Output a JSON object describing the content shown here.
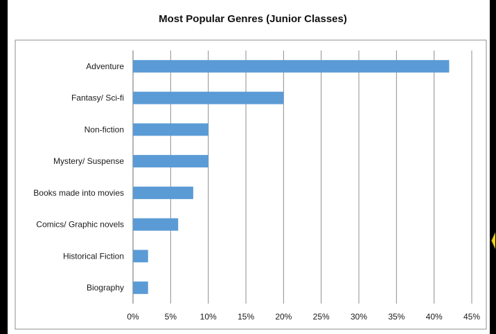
{
  "chart_data": {
    "type": "bar",
    "orientation": "horizontal",
    "title": "Most Popular Genres (Junior Classes)",
    "categories": [
      "Adventure",
      "Fantasy/ Sci-fi",
      "Non-fiction",
      "Mystery/ Suspense",
      "Books made into movies",
      "Comics/ Graphic novels",
      "Historical Fiction",
      "Biography"
    ],
    "values": [
      42,
      20,
      10,
      10,
      8,
      6,
      2,
      2
    ],
    "value_unit": "%",
    "xlim": [
      0,
      45
    ],
    "xticks": [
      0,
      5,
      10,
      15,
      20,
      25,
      30,
      35,
      40,
      45
    ],
    "xtick_labels": [
      "0%",
      "5%",
      "10%",
      "15%",
      "20%",
      "25%",
      "30%",
      "35%",
      "40%",
      "45%"
    ],
    "xlabel": "",
    "ylabel": "",
    "grid": "vertical",
    "legend": "none",
    "colors": {
      "bar": "#5b9bd5",
      "grid": "#8c8c8c",
      "border": "#8c8c8c"
    }
  }
}
